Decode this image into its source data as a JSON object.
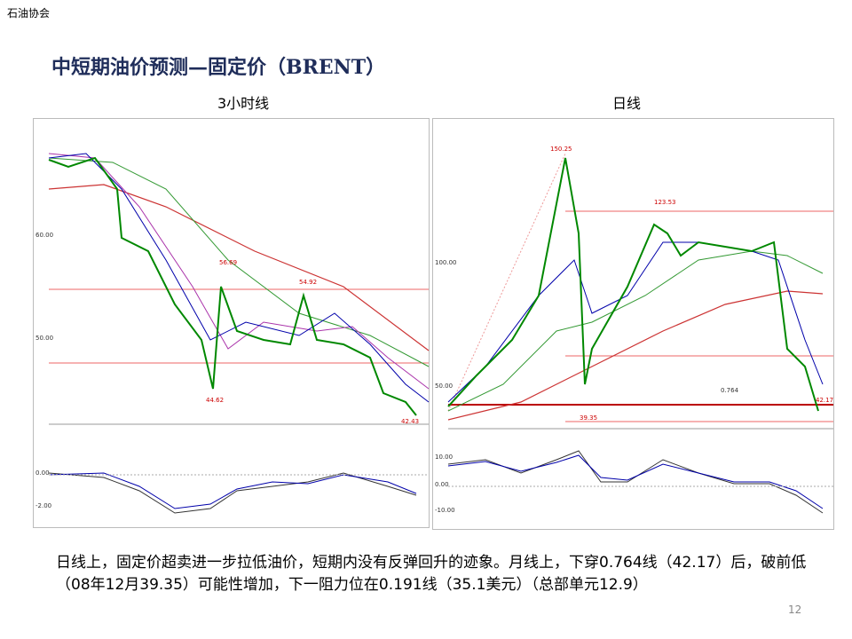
{
  "header": {
    "org": "石油协会"
  },
  "title": "中短期油价预测—固定价（BRENT）",
  "panels": [
    {
      "label": "3小时线",
      "axis_labels": [
        "60.00",
        "50.00",
        "0.00",
        "-2.00"
      ],
      "annotations": [
        "56.69",
        "54.92",
        "44.62",
        "42.43"
      ]
    },
    {
      "label": "日线",
      "axis_labels": [
        "100.00",
        "50.00",
        "10.00",
        "0.00",
        "-10.00"
      ],
      "annotations": [
        "150.25",
        "123.53",
        "0.764",
        "39.35",
        "42.17"
      ]
    }
  ],
  "body": "日线上，固定价超卖进一步拉低油价，短期内没有反弹回升的迹象。月线上，下穿0.764线（42.17）后，破前低（08年12月39.35）可能性增加，下一阻力位在0.191线（35.1美元）（总部单元12.9）",
  "page_number": "12"
}
